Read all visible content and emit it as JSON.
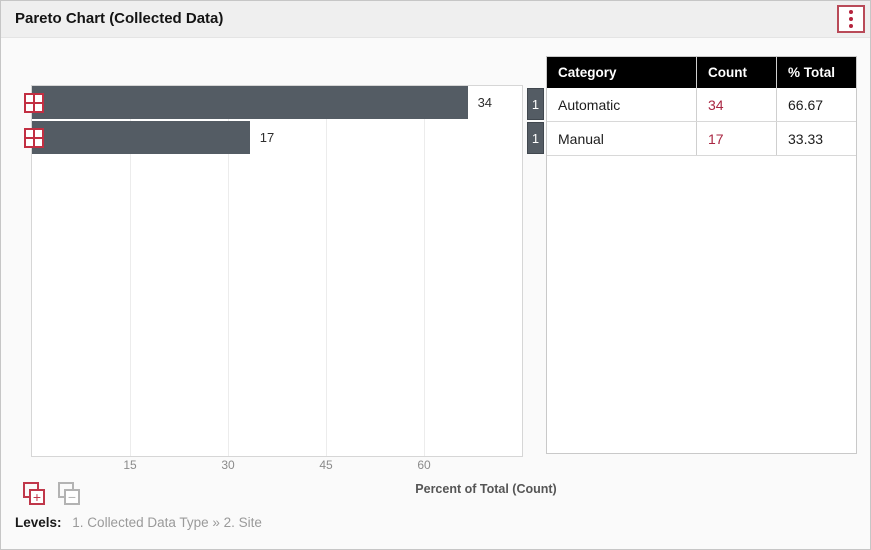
{
  "header": {
    "title": "Pareto Chart (Collected Data)",
    "menu_icon": "kebab-vertical-icon"
  },
  "colors": {
    "accent_red": "#bb2c42",
    "bar_slate": "#545c64",
    "table_header_bg": "#000000",
    "count_red": "#a92642"
  },
  "chart_data": {
    "type": "bar",
    "orientation": "horizontal",
    "title": "Pareto Chart (Collected Data)",
    "categories": [
      "Automatic",
      "Manual"
    ],
    "series": [
      {
        "name": "Count",
        "values": [
          34,
          17
        ]
      },
      {
        "name": "% Total",
        "values": [
          66.67,
          33.33
        ]
      }
    ],
    "bar_value_labels": [
      "34",
      "17"
    ],
    "row_badges": [
      "1",
      "1"
    ],
    "xlabel": "Percent of Total (Count)",
    "x_ticks": [
      15,
      30,
      45,
      60
    ],
    "xlim": [
      0,
      75
    ],
    "grid": "vertical gridlines",
    "legend": "none"
  },
  "table": {
    "columns": [
      "Category",
      "Count",
      "% Total"
    ],
    "rows": [
      {
        "category": "Automatic",
        "count": "34",
        "pct_total": "66.67"
      },
      {
        "category": "Manual",
        "count": "17",
        "pct_total": "33.33"
      }
    ]
  },
  "footer": {
    "expand_all_icon": "+",
    "collapse_all_icon": "−",
    "levels_label": "Levels:",
    "levels_path": "1. Collected Data Type » 2. Site"
  }
}
